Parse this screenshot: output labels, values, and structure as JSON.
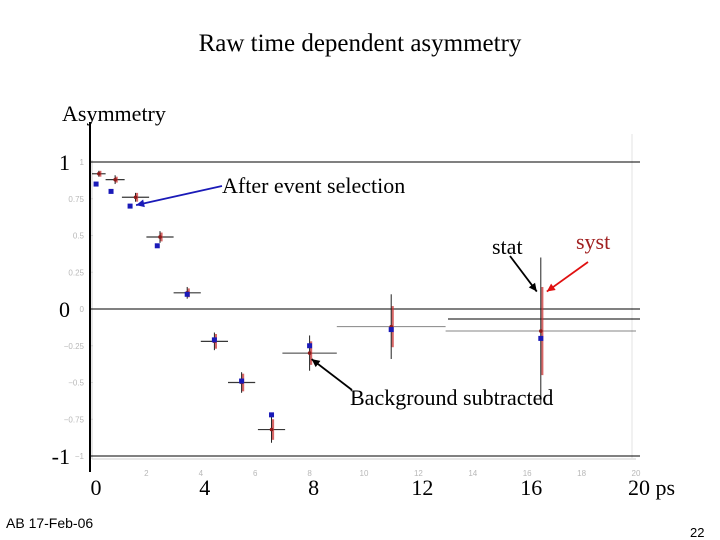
{
  "chart_data": {
    "type": "scatter",
    "title": "Raw time dependent asymmetry",
    "ylabel": "Asymmetry",
    "xlabel": "ps",
    "xlim": [
      0,
      20
    ],
    "ylim": [
      -1,
      1
    ],
    "y_ticks": [
      {
        "value": 1,
        "label": "1"
      },
      {
        "value": 0,
        "label": "0"
      },
      {
        "value": -1,
        "label": "-1"
      }
    ],
    "x_ticks": [
      {
        "value": 0,
        "label": "0"
      },
      {
        "value": 4,
        "label": "4"
      },
      {
        "value": 8,
        "label": "8"
      },
      {
        "value": 12,
        "label": "12"
      },
      {
        "value": 16,
        "label": "16"
      },
      {
        "value": 20,
        "label": "20 ps"
      }
    ],
    "faint_y_ticks": [
      "1",
      "0.75",
      "0.5",
      "0.25",
      "0",
      "−0.25",
      "−0.5",
      "−0.75",
      "−1"
    ],
    "faint_x_ticks": [
      "2",
      "4",
      "6",
      "8",
      "10",
      "12",
      "14",
      "16",
      "18",
      "20"
    ],
    "series": [
      {
        "name": "After event selection",
        "color": "#1a1ab8",
        "points": [
          {
            "x": 0.15,
            "y": 0.85
          },
          {
            "x": 0.7,
            "y": 0.8
          },
          {
            "x": 1.4,
            "y": 0.7
          },
          {
            "x": 2.4,
            "y": 0.43
          },
          {
            "x": 3.5,
            "y": 0.1
          },
          {
            "x": 4.5,
            "y": -0.21
          },
          {
            "x": 5.5,
            "y": -0.49
          },
          {
            "x": 6.6,
            "y": -0.72
          },
          {
            "x": 8.0,
            "y": -0.25
          },
          {
            "x": 11.0,
            "y": -0.14
          },
          {
            "x": 16.5,
            "y": -0.2
          }
        ]
      },
      {
        "name": "Background subtracted",
        "color": "#222222",
        "syst_color": "#cc3333",
        "points": [
          {
            "x": 0.25,
            "y": 0.92,
            "xerr": 0.25,
            "stat": 0.02,
            "syst": 0.02
          },
          {
            "x": 0.85,
            "y": 0.88,
            "xerr": 0.35,
            "stat": 0.03,
            "syst": 0.02
          },
          {
            "x": 1.6,
            "y": 0.76,
            "xerr": 0.5,
            "stat": 0.03,
            "syst": 0.03
          },
          {
            "x": 2.5,
            "y": 0.49,
            "xerr": 0.5,
            "stat": 0.04,
            "syst": 0.03
          },
          {
            "x": 3.5,
            "y": 0.11,
            "xerr": 0.5,
            "stat": 0.04,
            "syst": 0.03
          },
          {
            "x": 4.5,
            "y": -0.22,
            "xerr": 0.5,
            "stat": 0.06,
            "syst": 0.05
          },
          {
            "x": 5.5,
            "y": -0.5,
            "xerr": 0.5,
            "stat": 0.07,
            "syst": 0.06
          },
          {
            "x": 6.6,
            "y": -0.82,
            "xerr": 0.5,
            "stat": 0.09,
            "syst": 0.07
          },
          {
            "x": 8.0,
            "y": -0.3,
            "xerr": 1.0,
            "stat": 0.12,
            "syst": 0.08
          },
          {
            "x": 11.0,
            "y": -0.12,
            "xerr": 2.0,
            "stat": 0.22,
            "syst": 0.14
          },
          {
            "x": 16.5,
            "y": -0.15,
            "xerr": 3.5,
            "stat": 0.5,
            "syst": 0.3
          }
        ]
      }
    ],
    "annotations": {
      "after": "After event selection",
      "background": "Background subtracted",
      "stat": "stat",
      "syst": "syst"
    },
    "annotation_colors": {
      "after_arrow": "#1a1ab8",
      "stat_arrow": "#000000",
      "syst_arrow": "#e01010",
      "syst_text": "#a02020"
    }
  },
  "footer": "AB  17-Feb-06",
  "page_number": "22"
}
